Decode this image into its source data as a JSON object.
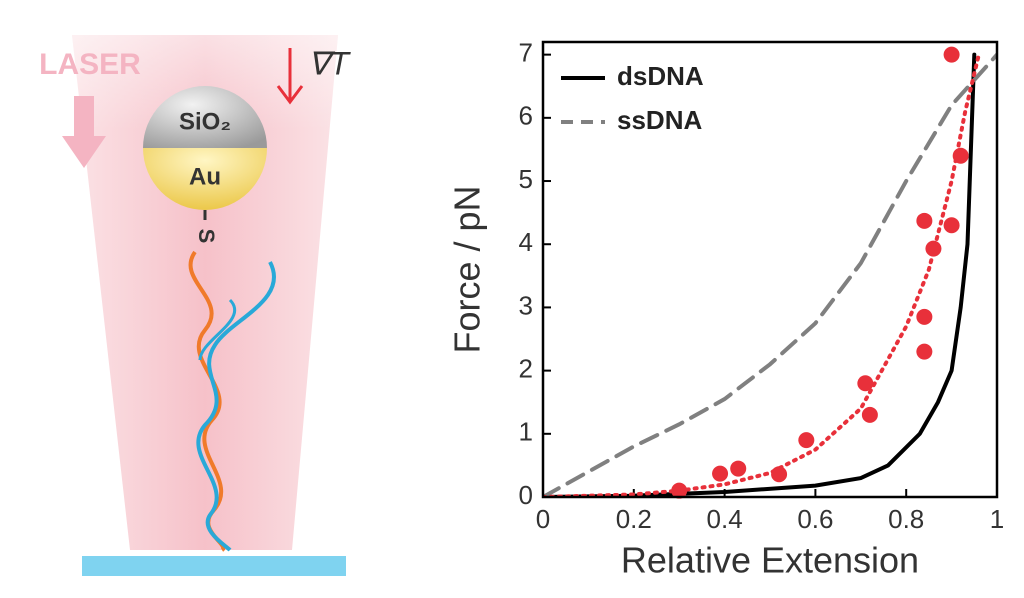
{
  "diagram": {
    "laser": "LASER",
    "gradient": "∇T",
    "shell": "SiO₂",
    "core": "Au",
    "linker": "S"
  },
  "chart_data": {
    "type": "line",
    "xlabel": "Relative Extension",
    "ylabel": "Force / pN",
    "xlim": [
      0,
      1
    ],
    "ylim": [
      0,
      7.2
    ],
    "xticks": [
      0,
      0.2,
      0.4,
      0.6,
      0.8,
      1
    ],
    "yticks": [
      0,
      1,
      2,
      3,
      4,
      5,
      6,
      7
    ],
    "legend": "upper left",
    "series": [
      {
        "name": "dsDNA",
        "color": "#000000",
        "dash": "solid",
        "x": [
          0,
          0.2,
          0.4,
          0.6,
          0.7,
          0.76,
          0.83,
          0.87,
          0.9,
          0.92,
          0.935,
          0.95
        ],
        "values": [
          0,
          0.02,
          0.08,
          0.18,
          0.3,
          0.5,
          1,
          1.5,
          2,
          3,
          4,
          7
        ]
      },
      {
        "name": "ssDNA",
        "color": "#808080",
        "dash": "dashed",
        "x": [
          0,
          0.1,
          0.2,
          0.3,
          0.4,
          0.5,
          0.6,
          0.7,
          0.8,
          0.9,
          1
        ],
        "values": [
          0,
          0.4,
          0.8,
          1.15,
          1.55,
          2.1,
          2.75,
          3.7,
          5.0,
          6.2,
          7.0
        ]
      }
    ],
    "fit": {
      "color": "#e8303a",
      "dash": "dotted",
      "x": [
        0,
        0.2,
        0.3,
        0.4,
        0.5,
        0.6,
        0.7,
        0.8,
        0.85,
        0.9,
        0.93,
        0.96
      ],
      "values": [
        0,
        0.04,
        0.1,
        0.2,
        0.38,
        0.75,
        1.4,
        2.7,
        3.6,
        5.0,
        6.1,
        7
      ]
    },
    "points": {
      "color": "#e8303a",
      "x": [
        0.3,
        0.39,
        0.43,
        0.52,
        0.58,
        0.71,
        0.72,
        0.84,
        0.86,
        0.9,
        0.84,
        0.84,
        0.92,
        0.9
      ],
      "values": [
        0.1,
        0.37,
        0.45,
        0.36,
        0.9,
        1.8,
        1.3,
        4.37,
        3.93,
        4.3,
        2.85,
        2.3,
        5.4,
        7.0
      ]
    }
  }
}
